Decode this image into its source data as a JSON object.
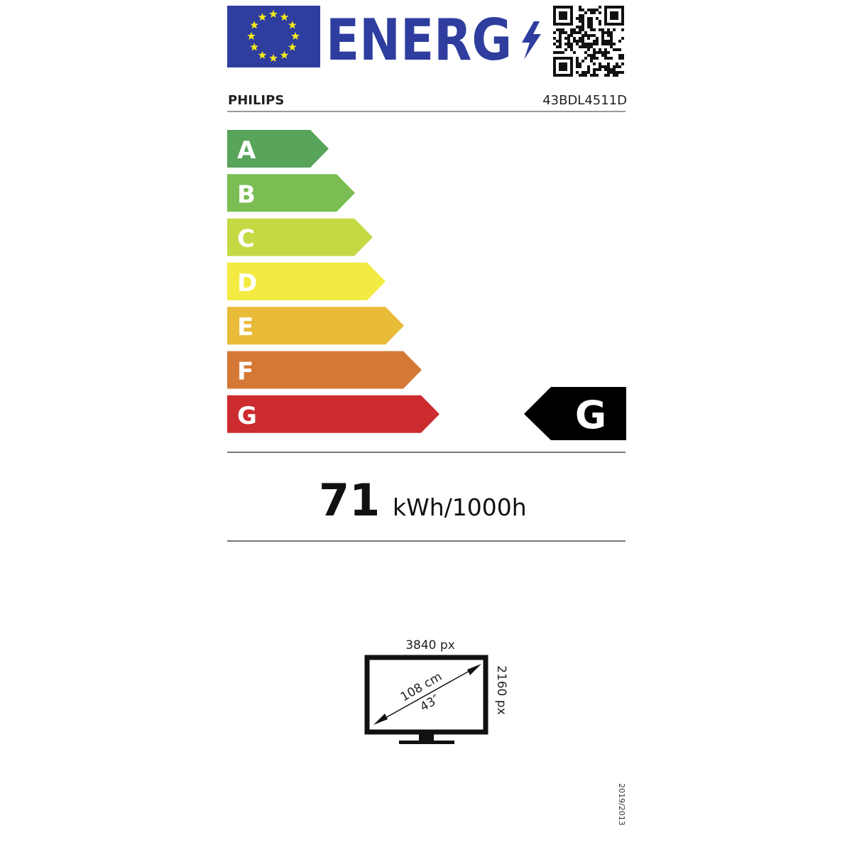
{
  "header": {
    "logo_text": "ENERG",
    "brand": "PHILIPS",
    "model": "43BDL4511D",
    "flag_color": "#2e3d9e",
    "star_color": "#f4e81c"
  },
  "scale": {
    "classes": [
      {
        "label": "A",
        "color": "#57a45a"
      },
      {
        "label": "B",
        "color": "#7abd52"
      },
      {
        "label": "C",
        "color": "#c4d944"
      },
      {
        "label": "D",
        "color": "#f3eb41"
      },
      {
        "label": "E",
        "color": "#e8bb39"
      },
      {
        "label": "F",
        "color": "#d57836"
      },
      {
        "label": "G",
        "color": "#cc2b2f"
      }
    ],
    "rating": "G"
  },
  "consumption": {
    "value": "71",
    "unit": "kWh/1000h"
  },
  "screen": {
    "width_px": "3840 px",
    "height_px": "2160 px",
    "diagonal_cm": "108 cm",
    "diagonal_in": "43″"
  },
  "footer": {
    "regulation": "2019/2013"
  }
}
